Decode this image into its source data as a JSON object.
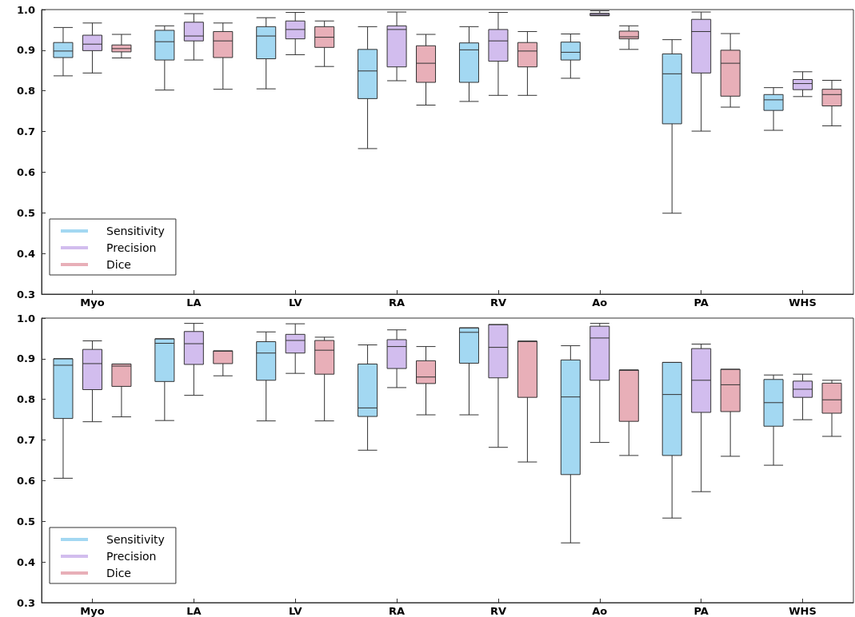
{
  "chart_data": [
    {
      "type": "box",
      "categories": [
        "Myo",
        "LA",
        "LV",
        "RA",
        "RV",
        "Ao",
        "PA",
        "WHS"
      ],
      "ylim": [
        0.3,
        1.0
      ],
      "yticks": [
        0.3,
        0.4,
        0.5,
        0.6,
        0.7,
        0.8,
        0.9,
        {
          "value": 1,
          "label": "1.0"
        }
      ],
      "grid": false,
      "legend": "bottom left",
      "series": [
        {
          "name": "Sensitivity",
          "color": "#a3d8f2",
          "boxes": [
            {
              "low": 0.837,
              "q1": 0.882,
              "median": 0.898,
              "q3": 0.919,
              "high": 0.956
            },
            {
              "low": 0.802,
              "q1": 0.876,
              "median": 0.921,
              "q3": 0.949,
              "high": 0.96
            },
            {
              "low": 0.805,
              "q1": 0.879,
              "median": 0.935,
              "q3": 0.958,
              "high": 0.98
            },
            {
              "low": 0.658,
              "q1": 0.781,
              "median": 0.849,
              "q3": 0.902,
              "high": 0.958
            },
            {
              "low": 0.774,
              "q1": 0.821,
              "median": 0.901,
              "q3": 0.918,
              "high": 0.958
            },
            {
              "low": 0.831,
              "q1": 0.876,
              "median": 0.895,
              "q3": 0.92,
              "high": 0.94
            },
            {
              "low": 0.499,
              "q1": 0.719,
              "median": 0.842,
              "q3": 0.891,
              "high": 0.926
            },
            {
              "low": 0.703,
              "q1": 0.752,
              "median": 0.778,
              "q3": 0.791,
              "high": 0.808
            }
          ]
        },
        {
          "name": "Precision",
          "color": "#d2bdee",
          "boxes": [
            {
              "low": 0.844,
              "q1": 0.899,
              "median": 0.915,
              "q3": 0.937,
              "high": 0.967
            },
            {
              "low": 0.876,
              "q1": 0.923,
              "median": 0.935,
              "q3": 0.969,
              "high": 0.99
            },
            {
              "low": 0.889,
              "q1": 0.928,
              "median": 0.951,
              "q3": 0.972,
              "high": 0.993
            },
            {
              "low": 0.825,
              "q1": 0.859,
              "median": 0.951,
              "q3": 0.96,
              "high": 0.994
            },
            {
              "low": 0.789,
              "q1": 0.873,
              "median": 0.923,
              "q3": 0.951,
              "high": 0.993
            },
            {
              "low": 0.985,
              "q1": 0.985,
              "median": 0.988,
              "q3": 0.991,
              "high": 0.997
            },
            {
              "low": 0.701,
              "q1": 0.844,
              "median": 0.946,
              "q3": 0.976,
              "high": 0.994
            },
            {
              "low": 0.786,
              "q1": 0.803,
              "median": 0.818,
              "q3": 0.828,
              "high": 0.847
            }
          ]
        },
        {
          "name": "Dice",
          "color": "#e8afb8",
          "boxes": [
            {
              "low": 0.881,
              "q1": 0.896,
              "median": 0.904,
              "q3": 0.913,
              "high": 0.939
            },
            {
              "low": 0.804,
              "q1": 0.882,
              "median": 0.923,
              "q3": 0.946,
              "high": 0.967
            },
            {
              "low": 0.86,
              "q1": 0.907,
              "median": 0.932,
              "q3": 0.958,
              "high": 0.972
            },
            {
              "low": 0.765,
              "q1": 0.821,
              "median": 0.868,
              "q3": 0.911,
              "high": 0.939
            },
            {
              "low": 0.789,
              "q1": 0.859,
              "median": 0.898,
              "q3": 0.919,
              "high": 0.946
            },
            {
              "low": 0.902,
              "q1": 0.928,
              "median": 0.933,
              "q3": 0.947,
              "high": 0.96
            },
            {
              "low": 0.76,
              "q1": 0.787,
              "median": 0.868,
              "q3": 0.9,
              "high": 0.941
            },
            {
              "low": 0.714,
              "q1": 0.763,
              "median": 0.791,
              "q3": 0.804,
              "high": 0.826
            }
          ]
        }
      ]
    },
    {
      "type": "box",
      "categories": [
        "Myo",
        "LA",
        "LV",
        "RA",
        "RV",
        "Ao",
        "PA",
        "WHS"
      ],
      "ylim": [
        0.3,
        1.0
      ],
      "yticks": [
        0.3,
        0.4,
        0.5,
        0.6,
        0.7,
        0.8,
        0.9,
        {
          "value": 1,
          "label": "1.0"
        }
      ],
      "grid": false,
      "legend": "bottom left",
      "series": [
        {
          "name": "Sensitivity",
          "color": "#a3d8f2",
          "boxes": [
            {
              "low": 0.606,
              "q1": 0.753,
              "median": 0.884,
              "q3": 0.9,
              "high": 0.9
            },
            {
              "low": 0.748,
              "q1": 0.844,
              "median": 0.938,
              "q3": 0.949,
              "high": 0.949
            },
            {
              "low": 0.747,
              "q1": 0.847,
              "median": 0.914,
              "q3": 0.942,
              "high": 0.966
            },
            {
              "low": 0.675,
              "q1": 0.758,
              "median": 0.779,
              "q3": 0.887,
              "high": 0.934
            },
            {
              "low": 0.762,
              "q1": 0.889,
              "median": 0.965,
              "q3": 0.976,
              "high": 0.976
            },
            {
              "low": 0.447,
              "q1": 0.615,
              "median": 0.806,
              "q3": 0.897,
              "high": 0.932
            },
            {
              "low": 0.508,
              "q1": 0.662,
              "median": 0.812,
              "q3": 0.891,
              "high": 0.891
            },
            {
              "low": 0.638,
              "q1": 0.734,
              "median": 0.792,
              "q3": 0.849,
              "high": 0.86
            }
          ]
        },
        {
          "name": "Precision",
          "color": "#d2bdee",
          "boxes": [
            {
              "low": 0.745,
              "q1": 0.824,
              "median": 0.888,
              "q3": 0.923,
              "high": 0.944
            },
            {
              "low": 0.81,
              "q1": 0.886,
              "median": 0.937,
              "q3": 0.967,
              "high": 0.987
            },
            {
              "low": 0.864,
              "q1": 0.914,
              "median": 0.945,
              "q3": 0.96,
              "high": 0.986
            },
            {
              "low": 0.829,
              "q1": 0.876,
              "median": 0.93,
              "q3": 0.947,
              "high": 0.971
            },
            {
              "low": 0.682,
              "q1": 0.853,
              "median": 0.928,
              "q3": 0.984,
              "high": 0.984
            },
            {
              "low": 0.694,
              "q1": 0.847,
              "median": 0.951,
              "q3": 0.98,
              "high": 0.987
            },
            {
              "low": 0.573,
              "q1": 0.768,
              "median": 0.847,
              "q3": 0.925,
              "high": 0.936
            },
            {
              "low": 0.75,
              "q1": 0.805,
              "median": 0.825,
              "q3": 0.845,
              "high": 0.862
            }
          ]
        },
        {
          "name": "Dice",
          "color": "#e8afb8",
          "boxes": [
            {
              "low": 0.757,
              "q1": 0.832,
              "median": 0.882,
              "q3": 0.887,
              "high": 0.887
            },
            {
              "low": 0.858,
              "q1": 0.888,
              "median": 0.919,
              "q3": 0.919,
              "high": 0.919
            },
            {
              "low": 0.747,
              "q1": 0.862,
              "median": 0.921,
              "q3": 0.945,
              "high": 0.953
            },
            {
              "low": 0.762,
              "q1": 0.839,
              "median": 0.855,
              "q3": 0.895,
              "high": 0.93
            },
            {
              "low": 0.646,
              "q1": 0.805,
              "median": 0.943,
              "q3": 0.943,
              "high": 0.943
            },
            {
              "low": 0.662,
              "q1": 0.746,
              "median": 0.872,
              "q3": 0.872,
              "high": 0.872
            },
            {
              "low": 0.66,
              "q1": 0.77,
              "median": 0.836,
              "q3": 0.874,
              "high": 0.874
            },
            {
              "low": 0.709,
              "q1": 0.766,
              "median": 0.799,
              "q3": 0.84,
              "high": 0.847
            }
          ]
        }
      ]
    }
  ]
}
